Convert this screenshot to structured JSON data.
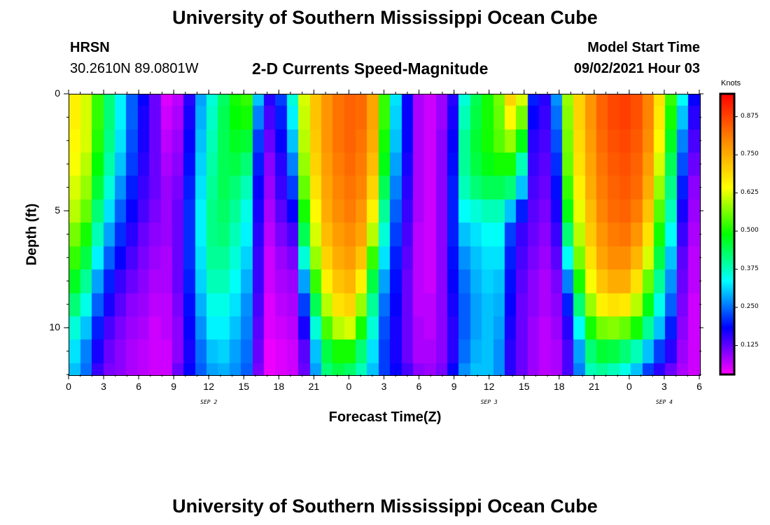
{
  "header": {
    "title_top": "University of Southern Mississippi Ocean Cube",
    "station": "HRSN",
    "coords": "30.2610N  89.0801W",
    "plot_title": "2-D Currents Speed-Magnitude",
    "model_label": "Model Start Time",
    "model_time": "09/02/2021 Hour 03",
    "title_bottom": "University of Southern Mississippi Ocean Cube"
  },
  "chart_data": {
    "type": "heatmap",
    "title": "2-D Currents Speed-Magnitude",
    "xlabel": "Forecast Time(Z)",
    "ylabel": "Depth (ft)",
    "x_hours": [
      0,
      3,
      6,
      9,
      12,
      15,
      18,
      21,
      24,
      27,
      30,
      33,
      36,
      39,
      42,
      45,
      48,
      51,
      54
    ],
    "x_tick_labels": [
      "0",
      "3",
      "6",
      "9",
      "12",
      "15",
      "18",
      "21",
      "0",
      "3",
      "6",
      "9",
      "12",
      "15",
      "18",
      "21",
      "0",
      "3",
      "6"
    ],
    "day_labels": [
      {
        "text": "SEP 2",
        "hour": 12
      },
      {
        "text": "SEP 3",
        "hour": 36
      },
      {
        "text": "SEP 4",
        "hour": 51
      }
    ],
    "y_ticks": [
      0,
      5,
      10
    ],
    "y_tick_labels": [
      "0",
      "5",
      "10"
    ],
    "ylim": [
      0,
      12
    ],
    "x_range": [
      0,
      54
    ],
    "colorbar": {
      "unit": "Knots",
      "range": [
        0.03,
        0.95
      ],
      "ticks": [
        0.125,
        0.25,
        0.375,
        0.5,
        0.625,
        0.75,
        0.875
      ],
      "tick_labels": [
        "0.125",
        "0.250",
        "0.375",
        "0.500",
        "0.625",
        "0.750",
        "0.875"
      ],
      "colors": [
        "#ff00ff",
        "#0000ff",
        "#00ffff",
        "#00ff00",
        "#ffff00",
        "#ff8800",
        "#ff0000"
      ]
    },
    "depths_ft": [
      0,
      1,
      2,
      3,
      4,
      5,
      6,
      7,
      8,
      9,
      10,
      11,
      12
    ],
    "speed_profiles": [
      {
        "hour": 0,
        "values": [
          0.66,
          0.66,
          0.65,
          0.64,
          0.62,
          0.6,
          0.56,
          0.52,
          0.47,
          0.42,
          0.36,
          0.32,
          0.3
        ]
      },
      {
        "hour": 1,
        "values": [
          0.62,
          0.62,
          0.62,
          0.6,
          0.58,
          0.55,
          0.5,
          0.45,
          0.4,
          0.35,
          0.3,
          0.26,
          0.25
        ]
      },
      {
        "hour": 2,
        "values": [
          0.52,
          0.52,
          0.51,
          0.49,
          0.46,
          0.42,
          0.38,
          0.33,
          0.28,
          0.24,
          0.2,
          0.17,
          0.15
        ]
      },
      {
        "hour": 3,
        "values": [
          0.42,
          0.42,
          0.41,
          0.39,
          0.36,
          0.32,
          0.28,
          0.24,
          0.2,
          0.17,
          0.14,
          0.12,
          0.11
        ]
      },
      {
        "hour": 4,
        "values": [
          0.33,
          0.33,
          0.32,
          0.3,
          0.27,
          0.24,
          0.21,
          0.18,
          0.15,
          0.13,
          0.11,
          0.1,
          0.1
        ]
      },
      {
        "hour": 5,
        "values": [
          0.24,
          0.24,
          0.23,
          0.22,
          0.2,
          0.18,
          0.16,
          0.14,
          0.12,
          0.1,
          0.09,
          0.08,
          0.08
        ]
      },
      {
        "hour": 6,
        "values": [
          0.18,
          0.17,
          0.17,
          0.16,
          0.15,
          0.14,
          0.12,
          0.11,
          0.1,
          0.09,
          0.08,
          0.07,
          0.07
        ]
      },
      {
        "hour": 7,
        "values": [
          0.12,
          0.12,
          0.12,
          0.12,
          0.12,
          0.11,
          0.1,
          0.09,
          0.08,
          0.07,
          0.06,
          0.06,
          0.06
        ]
      },
      {
        "hour": 8,
        "values": [
          0.05,
          0.06,
          0.07,
          0.08,
          0.09,
          0.09,
          0.09,
          0.08,
          0.08,
          0.07,
          0.07,
          0.06,
          0.06
        ]
      },
      {
        "hour": 9,
        "values": [
          0.07,
          0.08,
          0.09,
          0.1,
          0.11,
          0.12,
          0.12,
          0.12,
          0.12,
          0.11,
          0.1,
          0.1,
          0.12
        ]
      },
      {
        "hour": 10,
        "values": [
          0.16,
          0.17,
          0.18,
          0.19,
          0.2,
          0.21,
          0.21,
          0.21,
          0.2,
          0.19,
          0.18,
          0.17,
          0.18
        ]
      },
      {
        "hour": 11,
        "values": [
          0.28,
          0.29,
          0.3,
          0.31,
          0.32,
          0.33,
          0.33,
          0.32,
          0.31,
          0.29,
          0.27,
          0.25,
          0.24
        ]
      },
      {
        "hour": 12,
        "values": [
          0.36,
          0.37,
          0.38,
          0.39,
          0.4,
          0.41,
          0.41,
          0.4,
          0.38,
          0.35,
          0.33,
          0.3,
          0.28
        ]
      },
      {
        "hour": 13,
        "values": [
          0.43,
          0.44,
          0.44,
          0.44,
          0.44,
          0.43,
          0.42,
          0.4,
          0.38,
          0.35,
          0.33,
          0.31,
          0.29
        ]
      },
      {
        "hour": 14,
        "values": [
          0.5,
          0.49,
          0.47,
          0.45,
          0.42,
          0.4,
          0.38,
          0.36,
          0.34,
          0.32,
          0.3,
          0.28,
          0.27
        ]
      },
      {
        "hour": 15,
        "values": [
          0.52,
          0.5,
          0.46,
          0.42,
          0.38,
          0.35,
          0.33,
          0.31,
          0.29,
          0.27,
          0.26,
          0.25,
          0.24
        ]
      },
      {
        "hour": 16,
        "values": [
          0.3,
          0.26,
          0.22,
          0.2,
          0.18,
          0.17,
          0.16,
          0.15,
          0.15,
          0.14,
          0.13,
          0.12,
          0.11
        ]
      },
      {
        "hour": 17,
        "values": [
          0.16,
          0.14,
          0.12,
          0.1,
          0.09,
          0.08,
          0.07,
          0.06,
          0.06,
          0.05,
          0.05,
          0.04,
          0.04
        ]
      },
      {
        "hour": 18,
        "values": [
          0.22,
          0.2,
          0.18,
          0.16,
          0.15,
          0.13,
          0.11,
          0.09,
          0.08,
          0.07,
          0.06,
          0.05,
          0.05
        ]
      },
      {
        "hour": 19,
        "values": [
          0.36,
          0.33,
          0.3,
          0.26,
          0.22,
          0.18,
          0.14,
          0.11,
          0.09,
          0.08,
          0.07,
          0.06,
          0.06
        ]
      },
      {
        "hour": 20,
        "values": [
          0.62,
          0.61,
          0.6,
          0.58,
          0.55,
          0.5,
          0.44,
          0.36,
          0.28,
          0.22,
          0.17,
          0.13,
          0.12
        ]
      },
      {
        "hour": 21,
        "values": [
          0.72,
          0.72,
          0.71,
          0.7,
          0.68,
          0.65,
          0.62,
          0.58,
          0.52,
          0.44,
          0.36,
          0.3,
          0.28
        ]
      },
      {
        "hour": 22,
        "values": [
          0.78,
          0.78,
          0.78,
          0.77,
          0.76,
          0.75,
          0.73,
          0.7,
          0.66,
          0.6,
          0.53,
          0.45,
          0.42
        ]
      },
      {
        "hour": 23,
        "values": [
          0.82,
          0.82,
          0.82,
          0.81,
          0.8,
          0.79,
          0.77,
          0.75,
          0.72,
          0.68,
          0.6,
          0.5,
          0.45
        ]
      },
      {
        "hour": 24,
        "values": [
          0.84,
          0.84,
          0.84,
          0.83,
          0.82,
          0.81,
          0.79,
          0.77,
          0.74,
          0.7,
          0.62,
          0.5,
          0.43
        ]
      },
      {
        "hour": 25,
        "values": [
          0.83,
          0.83,
          0.82,
          0.81,
          0.8,
          0.78,
          0.76,
          0.72,
          0.66,
          0.58,
          0.5,
          0.42,
          0.38
        ]
      },
      {
        "hour": 26,
        "values": [
          0.76,
          0.76,
          0.75,
          0.73,
          0.7,
          0.66,
          0.6,
          0.52,
          0.45,
          0.4,
          0.36,
          0.32,
          0.3
        ]
      },
      {
        "hour": 27,
        "values": [
          0.52,
          0.52,
          0.5,
          0.48,
          0.44,
          0.4,
          0.36,
          0.32,
          0.28,
          0.25,
          0.23,
          0.22,
          0.22
        ]
      },
      {
        "hour": 28,
        "values": [
          0.32,
          0.31,
          0.3,
          0.28,
          0.26,
          0.24,
          0.22,
          0.2,
          0.19,
          0.18,
          0.17,
          0.17,
          0.18
        ]
      },
      {
        "hour": 29,
        "values": [
          0.18,
          0.18,
          0.18,
          0.17,
          0.16,
          0.15,
          0.14,
          0.13,
          0.12,
          0.12,
          0.12,
          0.12,
          0.14
        ]
      },
      {
        "hour": 30,
        "values": [
          0.08,
          0.08,
          0.08,
          0.08,
          0.08,
          0.08,
          0.07,
          0.07,
          0.07,
          0.07,
          0.08,
          0.08,
          0.1
        ]
      },
      {
        "hour": 31,
        "values": [
          0.06,
          0.06,
          0.06,
          0.06,
          0.06,
          0.06,
          0.06,
          0.06,
          0.06,
          0.07,
          0.07,
          0.08,
          0.09
        ]
      },
      {
        "hour": 32,
        "values": [
          0.09,
          0.09,
          0.1,
          0.1,
          0.1,
          0.1,
          0.1,
          0.1,
          0.1,
          0.1,
          0.1,
          0.1,
          0.11
        ]
      },
      {
        "hour": 33,
        "values": [
          0.16,
          0.17,
          0.18,
          0.19,
          0.2,
          0.2,
          0.2,
          0.19,
          0.18,
          0.17,
          0.16,
          0.16,
          0.18
        ]
      },
      {
        "hour": 34,
        "values": [
          0.36,
          0.38,
          0.4,
          0.4,
          0.38,
          0.34,
          0.3,
          0.27,
          0.25,
          0.24,
          0.24,
          0.25,
          0.27
        ]
      },
      {
        "hour": 35,
        "values": [
          0.44,
          0.45,
          0.46,
          0.45,
          0.42,
          0.36,
          0.32,
          0.3,
          0.29,
          0.28,
          0.28,
          0.29,
          0.3
        ]
      },
      {
        "hour": 36,
        "values": [
          0.5,
          0.5,
          0.5,
          0.48,
          0.44,
          0.38,
          0.34,
          0.32,
          0.31,
          0.3,
          0.3,
          0.3,
          0.3
        ]
      },
      {
        "hour": 37,
        "values": [
          0.56,
          0.55,
          0.54,
          0.5,
          0.44,
          0.38,
          0.34,
          0.32,
          0.3,
          0.29,
          0.28,
          0.27,
          0.27
        ]
      },
      {
        "hour": 38,
        "values": [
          0.7,
          0.65,
          0.58,
          0.5,
          0.42,
          0.3,
          0.22,
          0.2,
          0.19,
          0.18,
          0.17,
          0.16,
          0.16
        ]
      },
      {
        "hour": 39,
        "values": [
          0.62,
          0.56,
          0.48,
          0.38,
          0.3,
          0.2,
          0.15,
          0.14,
          0.13,
          0.12,
          0.12,
          0.12,
          0.12
        ]
      },
      {
        "hour": 40,
        "values": [
          0.2,
          0.18,
          0.16,
          0.15,
          0.14,
          0.13,
          0.12,
          0.11,
          0.1,
          0.1,
          0.09,
          0.09,
          0.09
        ]
      },
      {
        "hour": 41,
        "values": [
          0.16,
          0.15,
          0.14,
          0.13,
          0.12,
          0.11,
          0.1,
          0.09,
          0.08,
          0.08,
          0.07,
          0.07,
          0.07
        ]
      },
      {
        "hour": 42,
        "values": [
          0.27,
          0.25,
          0.23,
          0.21,
          0.19,
          0.17,
          0.15,
          0.13,
          0.11,
          0.1,
          0.09,
          0.08,
          0.08
        ]
      },
      {
        "hour": 43,
        "values": [
          0.58,
          0.57,
          0.56,
          0.55,
          0.52,
          0.48,
          0.42,
          0.34,
          0.26,
          0.2,
          0.16,
          0.14,
          0.14
        ]
      },
      {
        "hour": 44,
        "values": [
          0.7,
          0.7,
          0.69,
          0.68,
          0.66,
          0.63,
          0.6,
          0.56,
          0.5,
          0.42,
          0.34,
          0.28,
          0.26
        ]
      },
      {
        "hour": 45,
        "values": [
          0.78,
          0.78,
          0.77,
          0.76,
          0.75,
          0.73,
          0.71,
          0.68,
          0.64,
          0.58,
          0.5,
          0.42,
          0.38
        ]
      },
      {
        "hour": 46,
        "values": [
          0.84,
          0.84,
          0.83,
          0.82,
          0.81,
          0.8,
          0.78,
          0.76,
          0.72,
          0.66,
          0.56,
          0.46,
          0.4
        ]
      },
      {
        "hour": 47,
        "values": [
          0.87,
          0.87,
          0.86,
          0.85,
          0.84,
          0.83,
          0.81,
          0.79,
          0.75,
          0.68,
          0.57,
          0.45,
          0.38
        ]
      },
      {
        "hour": 48,
        "values": [
          0.88,
          0.88,
          0.87,
          0.86,
          0.85,
          0.84,
          0.82,
          0.79,
          0.75,
          0.67,
          0.55,
          0.42,
          0.35
        ]
      },
      {
        "hour": 49,
        "values": [
          0.86,
          0.86,
          0.85,
          0.84,
          0.83,
          0.81,
          0.78,
          0.74,
          0.68,
          0.6,
          0.5,
          0.38,
          0.3
        ]
      },
      {
        "hour": 50,
        "values": [
          0.8,
          0.8,
          0.79,
          0.77,
          0.75,
          0.72,
          0.68,
          0.62,
          0.55,
          0.48,
          0.4,
          0.3,
          0.22
        ]
      },
      {
        "hour": 51,
        "values": [
          0.68,
          0.67,
          0.65,
          0.62,
          0.58,
          0.54,
          0.5,
          0.45,
          0.4,
          0.35,
          0.3,
          0.22,
          0.16
        ]
      },
      {
        "hour": 52,
        "values": [
          0.52,
          0.5,
          0.47,
          0.44,
          0.41,
          0.38,
          0.34,
          0.3,
          0.27,
          0.24,
          0.2,
          0.16,
          0.12
        ]
      },
      {
        "hour": 53,
        "values": [
          0.34,
          0.3,
          0.26,
          0.23,
          0.2,
          0.17,
          0.15,
          0.13,
          0.12,
          0.11,
          0.1,
          0.09,
          0.08
        ]
      },
      {
        "hour": 54,
        "values": [
          0.18,
          0.16,
          0.14,
          0.12,
          0.1,
          0.09,
          0.08,
          0.07,
          0.07,
          0.06,
          0.06,
          0.06,
          0.06
        ]
      }
    ]
  }
}
